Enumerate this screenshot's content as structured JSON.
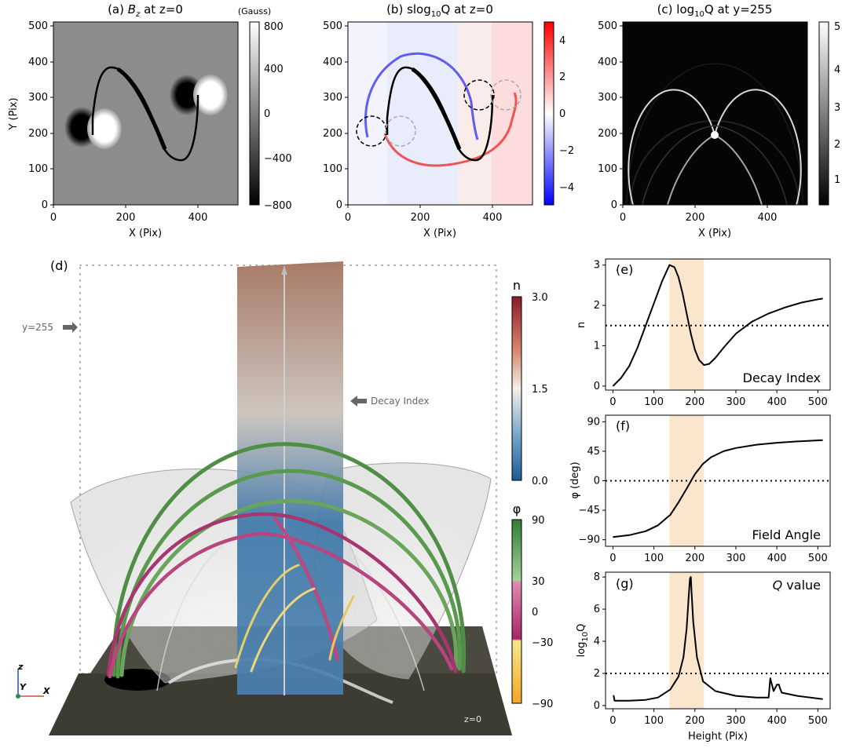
{
  "panel_a": {
    "title_prefix": "(a) ",
    "title_var": "B",
    "title_sub": "z",
    "title_suffix": " at z=0",
    "xlabel": "X (Pix)",
    "ylabel": "Y (Pix)",
    "xticks": [
      "0",
      "200",
      "400"
    ],
    "yticks": [
      "0",
      "100",
      "200",
      "300",
      "400",
      "500"
    ],
    "cbar_title": "(Gauss)",
    "cbar_ticks": [
      "800",
      "400",
      "0",
      "−400",
      "−800"
    ]
  },
  "panel_b": {
    "title_prefix": "(b) slog",
    "title_sub": "10",
    "title_suffix": "Q at z=0",
    "xlabel": "X (Pix)",
    "xticks": [
      "0",
      "200",
      "400"
    ],
    "yticks": [
      "0",
      "100",
      "200",
      "300",
      "400",
      "500"
    ],
    "cbar_ticks": [
      "4",
      "2",
      "0",
      "−2",
      "−4"
    ]
  },
  "panel_c": {
    "title_prefix": "(c) log",
    "title_sub": "10",
    "title_suffix": "Q at y=255",
    "xlabel": "X (Pix)",
    "xticks": [
      "0",
      "200",
      "400"
    ],
    "yticks": [
      "0",
      "100",
      "200",
      "300",
      "400",
      "500"
    ],
    "cbar_ticks": [
      "5",
      "4",
      "3",
      "2",
      "1"
    ]
  },
  "panel_d": {
    "label": "(d)",
    "y_marker": "y=255",
    "decay_index_note": "Decay Index",
    "z_label": "z=0",
    "n_cbar_title": "n",
    "n_cbar_ticks": [
      "3.0",
      "1.5",
      "0.0"
    ],
    "phi_cbar_title": "φ",
    "phi_cbar_ticks": [
      "90",
      "30",
      "0",
      "−30",
      "−90"
    ],
    "axis_z": "z",
    "axis_y": "Y",
    "axis_x": "X"
  },
  "panel_e": {
    "label": "(e)",
    "ylabel": "n",
    "inset": "Decay Index",
    "yticks": [
      "0",
      "1",
      "2",
      "3"
    ]
  },
  "panel_f": {
    "label": "(f)",
    "ylabel": "φ (deg)",
    "inset": "Field Angle",
    "yticks": [
      "−90",
      "−45",
      "0",
      "45",
      "90"
    ]
  },
  "panel_g": {
    "label": "(g)",
    "ylabel_prefix": "log",
    "ylabel_sub": "10",
    "ylabel_suffix": "Q",
    "inset_var": "Q",
    "inset_rest": " value",
    "yticks": [
      "0",
      "2",
      "4",
      "6",
      "8"
    ]
  },
  "height_axis": {
    "xlabel": "Height (Pix)",
    "xticks": [
      "0",
      "100",
      "200",
      "300",
      "400",
      "500"
    ]
  },
  "chart_data": [
    {
      "type": "line",
      "name": "Decay Index",
      "xlabel": "Height (Pix)",
      "ylabel": "n",
      "xlim": [
        -18,
        530
      ],
      "ylim": [
        -0.1,
        3.15
      ],
      "x": [
        0,
        20,
        40,
        60,
        80,
        100,
        120,
        138,
        150,
        160,
        170,
        180,
        190,
        200,
        210,
        222,
        235,
        250,
        270,
        300,
        340,
        380,
        420,
        460,
        500,
        512
      ],
      "series": [
        {
          "values": [
            0,
            0.2,
            0.5,
            0.95,
            1.5,
            2.05,
            2.6,
            3.0,
            2.95,
            2.7,
            2.3,
            1.8,
            1.3,
            0.9,
            0.65,
            0.52,
            0.55,
            0.7,
            0.95,
            1.3,
            1.6,
            1.8,
            1.95,
            2.07,
            2.15,
            2.17
          ]
        }
      ],
      "reference_lines": [
        1.5
      ],
      "highlight_x": [
        138,
        222
      ]
    },
    {
      "type": "line",
      "name": "Field Angle",
      "xlabel": "Height (Pix)",
      "ylabel": "φ (deg)",
      "xlim": [
        -18,
        530
      ],
      "ylim": [
        -100,
        100
      ],
      "x": [
        0,
        40,
        80,
        110,
        140,
        160,
        180,
        200,
        220,
        240,
        270,
        300,
        350,
        400,
        450,
        512
      ],
      "series": [
        {
          "values": [
            -86,
            -83,
            -77,
            -68,
            -52,
            -33,
            -12,
            10,
            26,
            36,
            45,
            50,
            55,
            58,
            60,
            62
          ]
        }
      ],
      "reference_lines": [
        0
      ],
      "highlight_x": [
        138,
        222
      ]
    },
    {
      "type": "line",
      "name": "Q value",
      "xlabel": "Height (Pix)",
      "ylabel": "log10Q",
      "xlim": [
        -18,
        530
      ],
      "ylim": [
        -0.2,
        8.3
      ],
      "x": [
        0,
        2,
        4,
        10,
        40,
        80,
        110,
        140,
        160,
        172,
        180,
        185,
        188,
        190,
        192,
        196,
        205,
        220,
        250,
        300,
        350,
        380,
        384,
        386,
        392,
        400,
        405,
        408,
        412,
        450,
        512
      ],
      "series": [
        {
          "values": [
            0.6,
            0.6,
            0.3,
            0.3,
            0.3,
            0.35,
            0.5,
            1.0,
            1.8,
            3.0,
            4.8,
            6.8,
            7.9,
            8.0,
            7.0,
            5.2,
            3.0,
            1.5,
            0.9,
            0.6,
            0.5,
            0.5,
            1.7,
            1.5,
            0.9,
            1.3,
            1.3,
            1.05,
            0.8,
            0.6,
            0.4
          ]
        }
      ],
      "reference_lines": [
        2
      ],
      "highlight_x": [
        138,
        222
      ]
    }
  ]
}
